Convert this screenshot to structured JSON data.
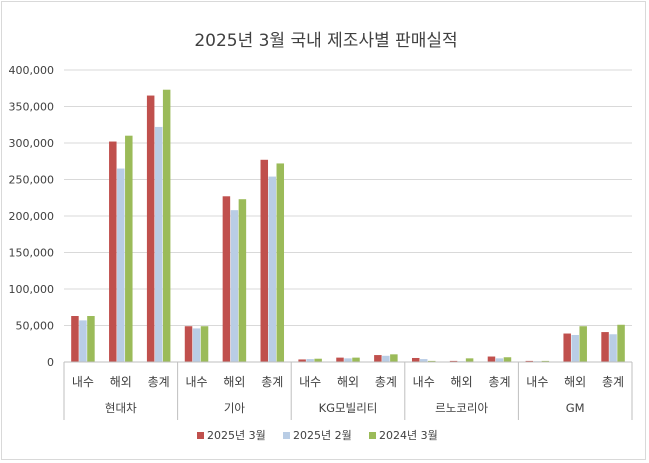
{
  "chart_data": {
    "type": "bar",
    "title": "2025년 3월 국내 제조사별 판매실적",
    "ylim": [
      0,
      400000
    ],
    "yticks": [
      "0",
      "50,000",
      "100,000",
      "150,000",
      "200,000",
      "250,000",
      "300,000",
      "350,000",
      "400,000"
    ],
    "grid": true,
    "legend_position": "bottom",
    "groups": [
      {
        "name": "현대차",
        "categories": [
          "내수",
          "해외",
          "총계"
        ]
      },
      {
        "name": "기아",
        "categories": [
          "내수",
          "해외",
          "총계"
        ]
      },
      {
        "name": "KG모빌리티",
        "categories": [
          "내수",
          "해외",
          "총계"
        ]
      },
      {
        "name": "르노코리아",
        "categories": [
          "내수",
          "해외",
          "총계"
        ]
      },
      {
        "name": "GM",
        "categories": [
          "내수",
          "해외",
          "총계"
        ]
      }
    ],
    "series": [
      {
        "name": "2025년 3월",
        "color": "#c0504d",
        "values": [
          63000,
          302000,
          365000,
          49000,
          227000,
          277000,
          3500,
          6000,
          9500,
          5500,
          1500,
          7500,
          1500,
          39000,
          41000
        ]
      },
      {
        "name": "2025년 2월",
        "color": "#b9cde5",
        "values": [
          57000,
          265000,
          322000,
          46000,
          208000,
          254000,
          4000,
          5000,
          8500,
          4000,
          1000,
          5000,
          1000,
          37000,
          38000
        ]
      },
      {
        "name": "2024년 3월",
        "color": "#9bbb59",
        "values": [
          63000,
          310000,
          373000,
          49000,
          223000,
          272000,
          4500,
          6000,
          10500,
          1500,
          5000,
          6500,
          1500,
          49000,
          51000
        ]
      }
    ]
  }
}
